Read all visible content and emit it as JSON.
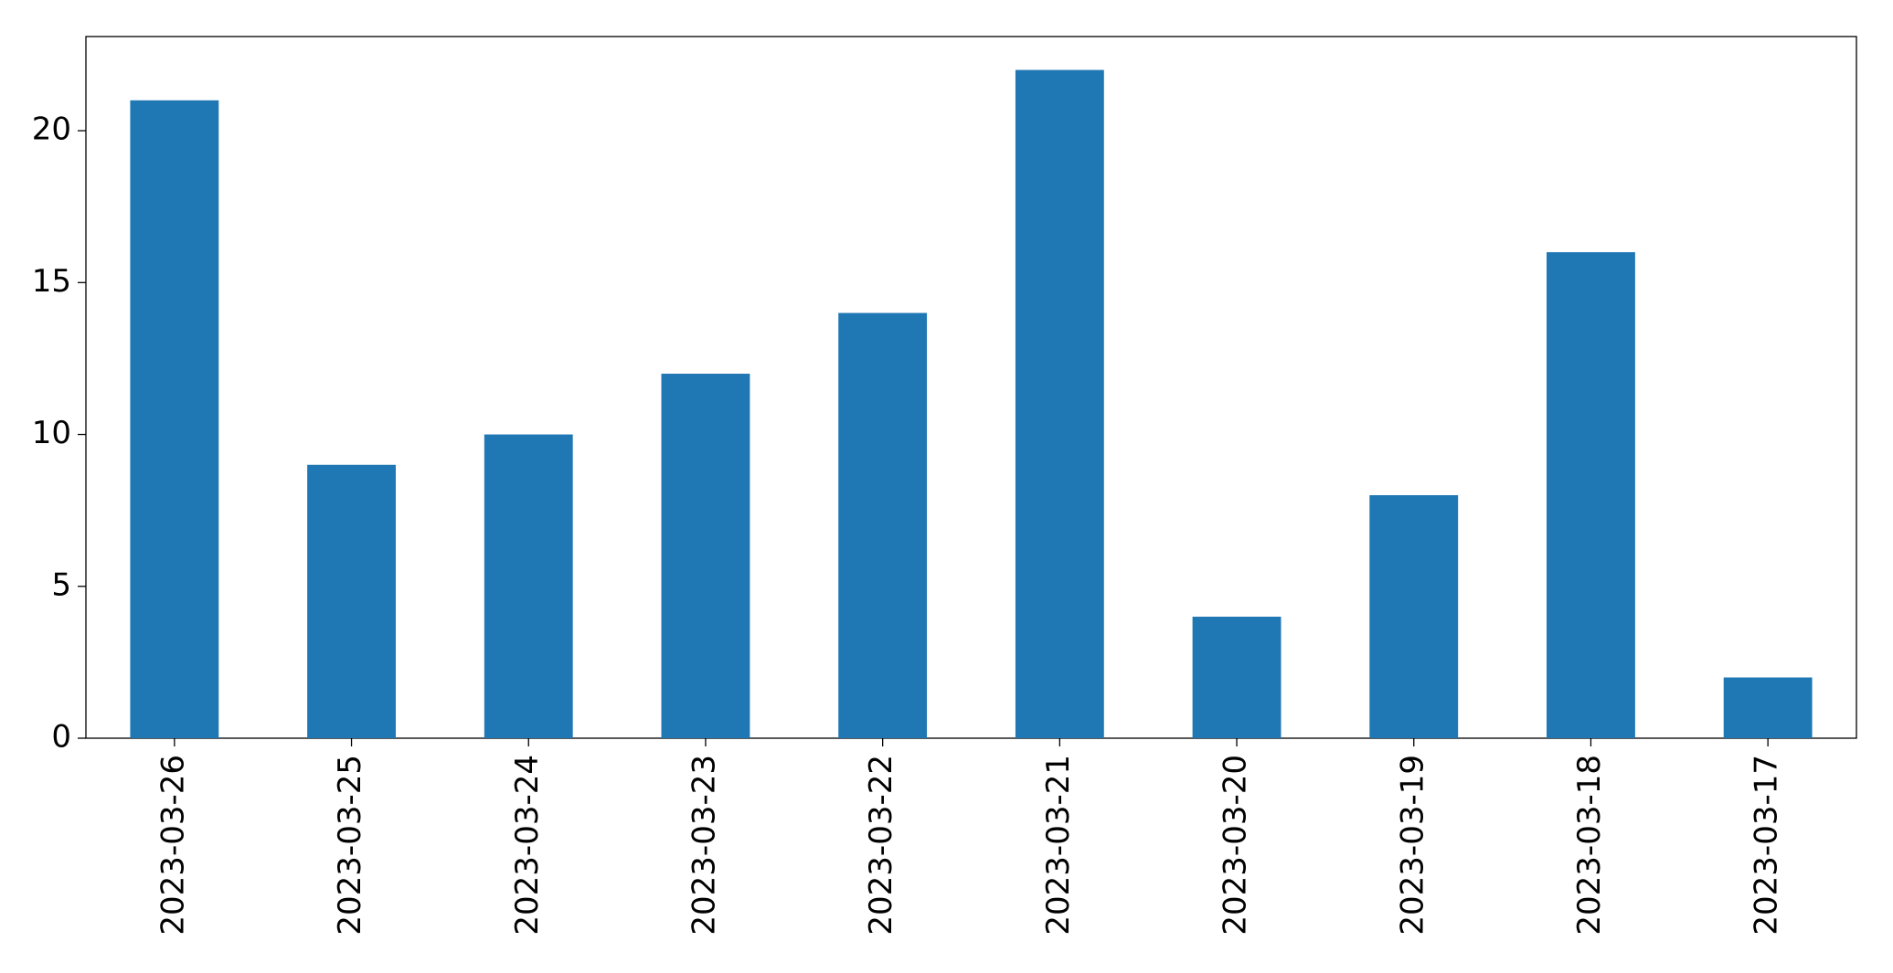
{
  "chart_data": {
    "type": "bar",
    "categories": [
      "2023-03-26",
      "2023-03-25",
      "2023-03-24",
      "2023-03-23",
      "2023-03-22",
      "2023-03-21",
      "2023-03-20",
      "2023-03-19",
      "2023-03-18",
      "2023-03-17"
    ],
    "values": [
      21,
      9,
      10,
      12,
      14,
      22,
      4,
      8,
      16,
      2
    ],
    "color": "#1f77b4",
    "ylim": [
      0,
      23.1
    ],
    "yticks": [
      0,
      5,
      10,
      15,
      20
    ],
    "grid": false
  }
}
